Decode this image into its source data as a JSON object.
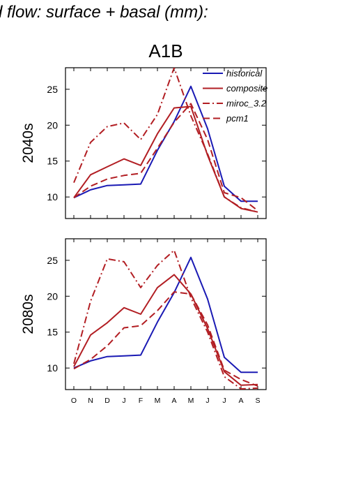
{
  "header_text": "d flow: surface + basal (mm):",
  "chart_data": {
    "type": "line",
    "title": "A1B",
    "categories": [
      "O",
      "N",
      "D",
      "J",
      "F",
      "M",
      "A",
      "M",
      "J",
      "J",
      "A",
      "S"
    ],
    "ylim": [
      7,
      28
    ],
    "yticks": [
      10,
      15,
      20,
      25
    ],
    "legend_position": "top-right",
    "series_styles": [
      {
        "name": "historical",
        "color": "#1a1ab4",
        "dash": ""
      },
      {
        "name": "composite",
        "color": "#b21e23",
        "dash": ""
      },
      {
        "name": "miroc_3.2",
        "color": "#b21e23",
        "dash": "10 4 2 4"
      },
      {
        "name": "pcm1",
        "color": "#b21e23",
        "dash": "10 5"
      }
    ],
    "panels": [
      {
        "row_label": "2040s",
        "series": [
          {
            "name": "historical",
            "values": [
              9.9,
              11.0,
              11.6,
              11.7,
              11.8,
              16.5,
              20.5,
              25.4,
              19.5,
              11.5,
              9.4,
              9.4
            ]
          },
          {
            "name": "composite",
            "values": [
              9.9,
              13.1,
              14.2,
              15.3,
              14.4,
              18.8,
              22.4,
              22.6,
              15.8,
              10.0,
              8.4,
              7.9
            ]
          },
          {
            "name": "miroc_3.2",
            "values": [
              12.0,
              17.6,
              19.8,
              20.3,
              18.0,
              21.5,
              28.0,
              21.3,
              16.0,
              10.0,
              8.5,
              7.9
            ]
          },
          {
            "name": "pcm1",
            "values": [
              9.9,
              11.5,
              12.5,
              13.0,
              13.3,
              16.8,
              20.4,
              23.0,
              18.0,
              10.6,
              9.9,
              8.1
            ]
          }
        ]
      },
      {
        "row_label": "2080s",
        "series": [
          {
            "name": "historical",
            "values": [
              10.0,
              11.0,
              11.6,
              11.7,
              11.8,
              16.4,
              20.5,
              25.4,
              19.6,
              11.5,
              9.4,
              9.4
            ]
          },
          {
            "name": "composite",
            "values": [
              10.2,
              14.6,
              16.3,
              18.4,
              17.5,
              21.2,
              23.0,
              20.3,
              15.5,
              9.5,
              7.6,
              7.7
            ]
          },
          {
            "name": "miroc_3.2",
            "values": [
              10.6,
              19.3,
              25.2,
              24.8,
              21.2,
              24.3,
              26.4,
              19.8,
              15.0,
              8.8,
              7.1,
              7.2
            ]
          },
          {
            "name": "pcm1",
            "values": [
              9.9,
              11.2,
              13.1,
              15.6,
              15.9,
              18.0,
              20.6,
              20.3,
              16.0,
              9.7,
              8.4,
              7.5
            ]
          }
        ]
      }
    ]
  }
}
